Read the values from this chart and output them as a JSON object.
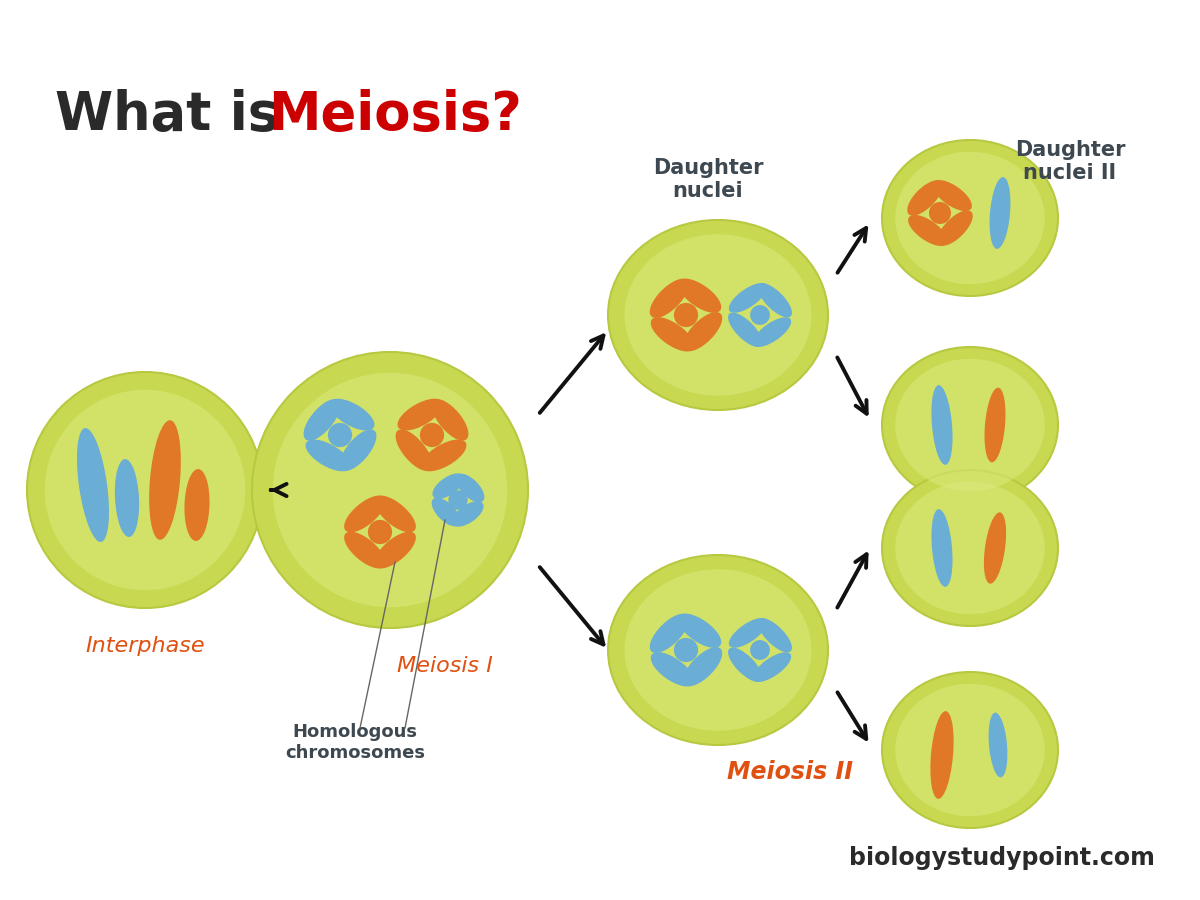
{
  "title_part1": "What is ",
  "title_part2": "Meiosis?",
  "title_color1": "#2a2a2a",
  "title_color2": "#cc0000",
  "title_fontsize": 38,
  "bg_color": "#ffffff",
  "cell_color_outer": "#c8d855",
  "cell_color_inner": "#dde87a",
  "blue_chrom": "#6aadd5",
  "orange_chrom": "#e07828",
  "label_red": "#e05010",
  "label_dark": "#3d4850",
  "watermark": "biologystudypoint.com",
  "watermark_color": "#2a2a2a",
  "watermark_fs": 17
}
